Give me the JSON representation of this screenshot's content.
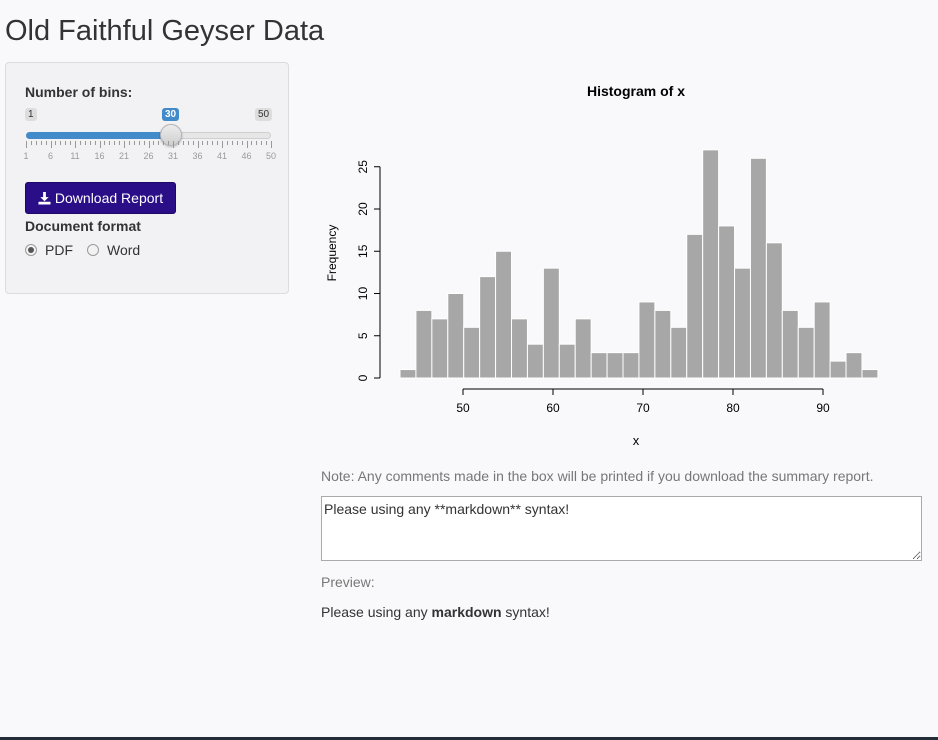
{
  "title": "Old Faithful Geyser Data",
  "sidebar": {
    "bins_label": "Number of bins:",
    "slider": {
      "min": 1,
      "max": 50,
      "value": 30,
      "min_label": "1",
      "max_label": "50",
      "value_label": "30",
      "tick_labels": [
        "1",
        "6",
        "11",
        "16",
        "21",
        "26",
        "31",
        "36",
        "41",
        "46",
        "50"
      ],
      "fill_color": "#428bca"
    },
    "download_label": "Download Report",
    "download_icon": "download-icon",
    "button_color": "#2a0e87",
    "format_label": "Document format",
    "formats": [
      {
        "label": "PDF",
        "checked": true
      },
      {
        "label": "Word",
        "checked": false
      }
    ]
  },
  "chart_data": {
    "type": "bar",
    "title": "Histogram of x",
    "xlabel": "x",
    "ylabel": "Frequency",
    "bar_color": "#a7a7a7",
    "bin_start": 43.0,
    "bin_width": 1.77,
    "values": [
      1,
      8,
      7,
      10,
      6,
      12,
      15,
      7,
      4,
      13,
      4,
      7,
      3,
      3,
      3,
      9,
      8,
      6,
      17,
      27,
      18,
      13,
      26,
      16,
      8,
      6,
      9,
      2,
      3,
      1
    ],
    "xlim": [
      43,
      96.1
    ],
    "ylim": [
      0,
      27
    ],
    "x_ticks": [
      50,
      60,
      70,
      80,
      90
    ],
    "y_ticks": [
      0,
      5,
      10,
      15,
      20,
      25
    ]
  },
  "main": {
    "note": "Note: Any comments made in the box will be printed if you download the summary report.",
    "comment_value": "Please using any **markdown** syntax!",
    "preview_label": "Preview:",
    "preview_before": "Please using any ",
    "preview_bold": "markdown",
    "preview_after": " syntax!"
  }
}
